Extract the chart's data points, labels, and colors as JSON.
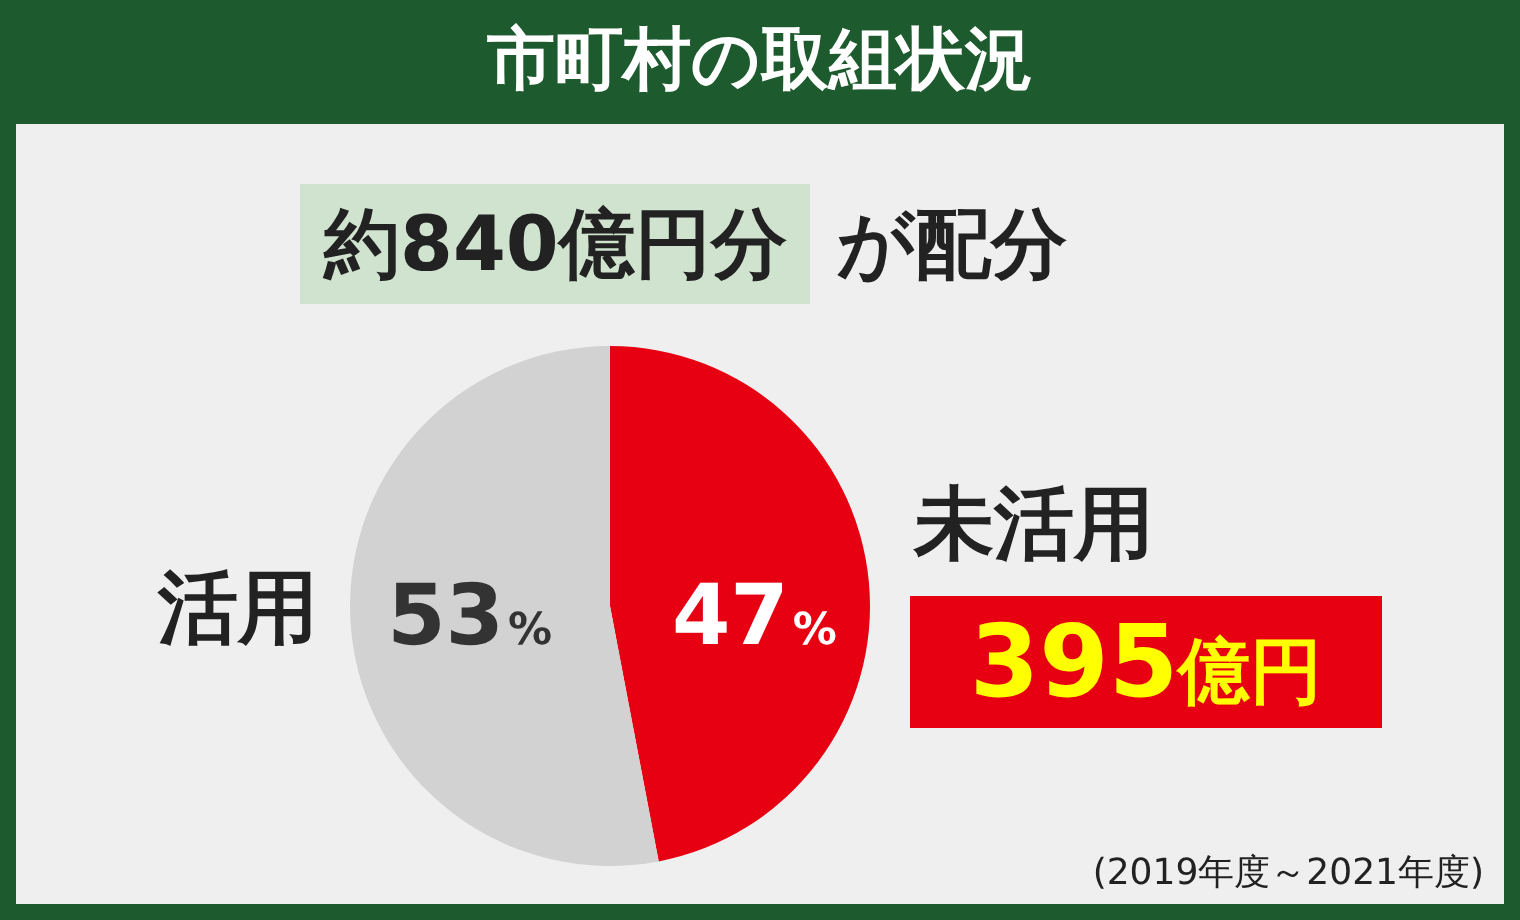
{
  "chart_data": {
    "type": "pie",
    "title": "市町村の取組状況",
    "subtitle": "約840億円分 が配分",
    "categories": [
      "未活用",
      "活用"
    ],
    "values": [
      47,
      53
    ],
    "colors": [
      "#e60012",
      "#d2d2d2"
    ],
    "value_labels": [
      "47%",
      "53%"
    ],
    "annotations": [
      "395億円",
      "(2019年度～2021年度)"
    ],
    "legend": false
  }
}
